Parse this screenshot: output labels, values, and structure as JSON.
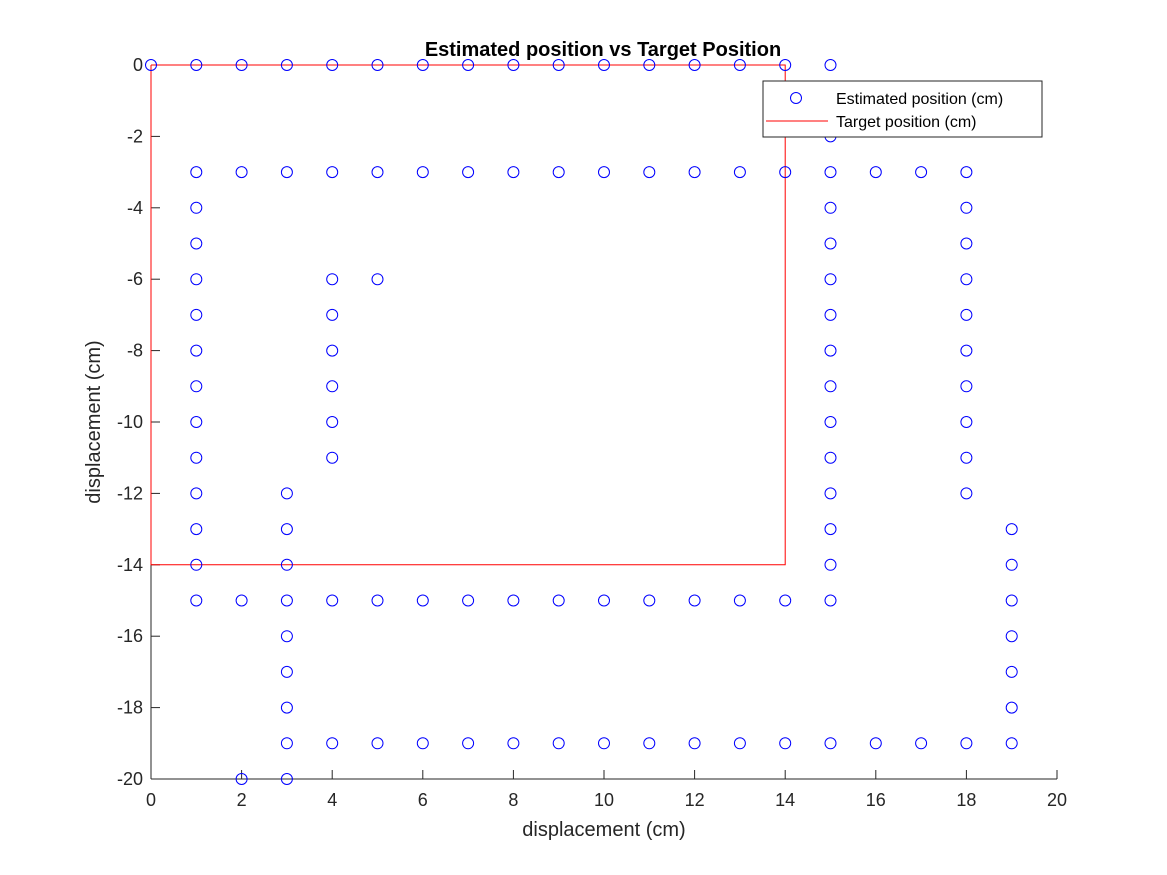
{
  "chart_data": {
    "type": "scatter",
    "title": "Estimated position vs Target Position",
    "xlabel": "displacement (cm)",
    "ylabel": "displacement (cm)",
    "xlim": [
      0,
      20
    ],
    "ylim": [
      -20,
      0
    ],
    "xticks": [
      "0",
      "2",
      "4",
      "6",
      "8",
      "10",
      "12",
      "14",
      "16",
      "18",
      "20"
    ],
    "yticks": [
      "0",
      "-2",
      "-4",
      "-6",
      "-8",
      "-10",
      "-12",
      "-14",
      "-16",
      "-18",
      "-20"
    ],
    "grid": false,
    "legend_position": "top-right",
    "colors": {
      "estimated": "#0000ff",
      "target": "#ff0000"
    },
    "series": [
      {
        "name": "Estimated position (cm)",
        "style": "circle-markers",
        "points": [
          [
            0,
            0
          ],
          [
            1,
            0
          ],
          [
            2,
            0
          ],
          [
            3,
            0
          ],
          [
            4,
            0
          ],
          [
            5,
            0
          ],
          [
            6,
            0
          ],
          [
            7,
            0
          ],
          [
            8,
            0
          ],
          [
            9,
            0
          ],
          [
            10,
            0
          ],
          [
            11,
            0
          ],
          [
            12,
            0
          ],
          [
            13,
            0
          ],
          [
            14,
            0
          ],
          [
            15,
            0
          ],
          [
            15,
            -1
          ],
          [
            15,
            -2
          ],
          [
            1,
            -3
          ],
          [
            2,
            -3
          ],
          [
            3,
            -3
          ],
          [
            4,
            -3
          ],
          [
            5,
            -3
          ],
          [
            6,
            -3
          ],
          [
            7,
            -3
          ],
          [
            8,
            -3
          ],
          [
            9,
            -3
          ],
          [
            10,
            -3
          ],
          [
            11,
            -3
          ],
          [
            12,
            -3
          ],
          [
            13,
            -3
          ],
          [
            14,
            -3
          ],
          [
            15,
            -3
          ],
          [
            16,
            -3
          ],
          [
            17,
            -3
          ],
          [
            18,
            -3
          ],
          [
            1,
            -4
          ],
          [
            1,
            -5
          ],
          [
            1,
            -6
          ],
          [
            1,
            -7
          ],
          [
            1,
            -8
          ],
          [
            1,
            -9
          ],
          [
            1,
            -10
          ],
          [
            1,
            -11
          ],
          [
            1,
            -12
          ],
          [
            1,
            -13
          ],
          [
            1,
            -14
          ],
          [
            1,
            -15
          ],
          [
            4,
            -6
          ],
          [
            5,
            -6
          ],
          [
            4,
            -7
          ],
          [
            4,
            -8
          ],
          [
            4,
            -9
          ],
          [
            4,
            -10
          ],
          [
            4,
            -11
          ],
          [
            15,
            -4
          ],
          [
            15,
            -5
          ],
          [
            15,
            -6
          ],
          [
            15,
            -7
          ],
          [
            15,
            -8
          ],
          [
            15,
            -9
          ],
          [
            15,
            -10
          ],
          [
            15,
            -11
          ],
          [
            15,
            -12
          ],
          [
            15,
            -13
          ],
          [
            15,
            -14
          ],
          [
            15,
            -15
          ],
          [
            18,
            -4
          ],
          [
            18,
            -5
          ],
          [
            18,
            -6
          ],
          [
            18,
            -7
          ],
          [
            18,
            -8
          ],
          [
            18,
            -9
          ],
          [
            18,
            -10
          ],
          [
            18,
            -11
          ],
          [
            18,
            -12
          ],
          [
            3,
            -12
          ],
          [
            3,
            -13
          ],
          [
            3,
            -14
          ],
          [
            2,
            -15
          ],
          [
            3,
            -15
          ],
          [
            4,
            -15
          ],
          [
            5,
            -15
          ],
          [
            6,
            -15
          ],
          [
            7,
            -15
          ],
          [
            8,
            -15
          ],
          [
            9,
            -15
          ],
          [
            10,
            -15
          ],
          [
            11,
            -15
          ],
          [
            12,
            -15
          ],
          [
            13,
            -15
          ],
          [
            14,
            -15
          ],
          [
            3,
            -16
          ],
          [
            3,
            -17
          ],
          [
            3,
            -18
          ],
          [
            3,
            -19
          ],
          [
            3,
            -20
          ],
          [
            2,
            -20
          ],
          [
            4,
            -19
          ],
          [
            5,
            -19
          ],
          [
            6,
            -19
          ],
          [
            7,
            -19
          ],
          [
            8,
            -19
          ],
          [
            9,
            -19
          ],
          [
            10,
            -19
          ],
          [
            11,
            -19
          ],
          [
            12,
            -19
          ],
          [
            13,
            -19
          ],
          [
            14,
            -19
          ],
          [
            15,
            -19
          ],
          [
            16,
            -19
          ],
          [
            17,
            -19
          ],
          [
            18,
            -19
          ],
          [
            19,
            -19
          ],
          [
            19,
            -13
          ],
          [
            19,
            -14
          ],
          [
            19,
            -15
          ],
          [
            19,
            -16
          ],
          [
            19,
            -17
          ],
          [
            19,
            -18
          ]
        ]
      },
      {
        "name": "Target position (cm)",
        "style": "line",
        "points": [
          [
            0,
            0
          ],
          [
            14,
            0
          ],
          [
            14,
            -14
          ],
          [
            0,
            -14
          ],
          [
            0,
            0
          ]
        ]
      }
    ]
  }
}
